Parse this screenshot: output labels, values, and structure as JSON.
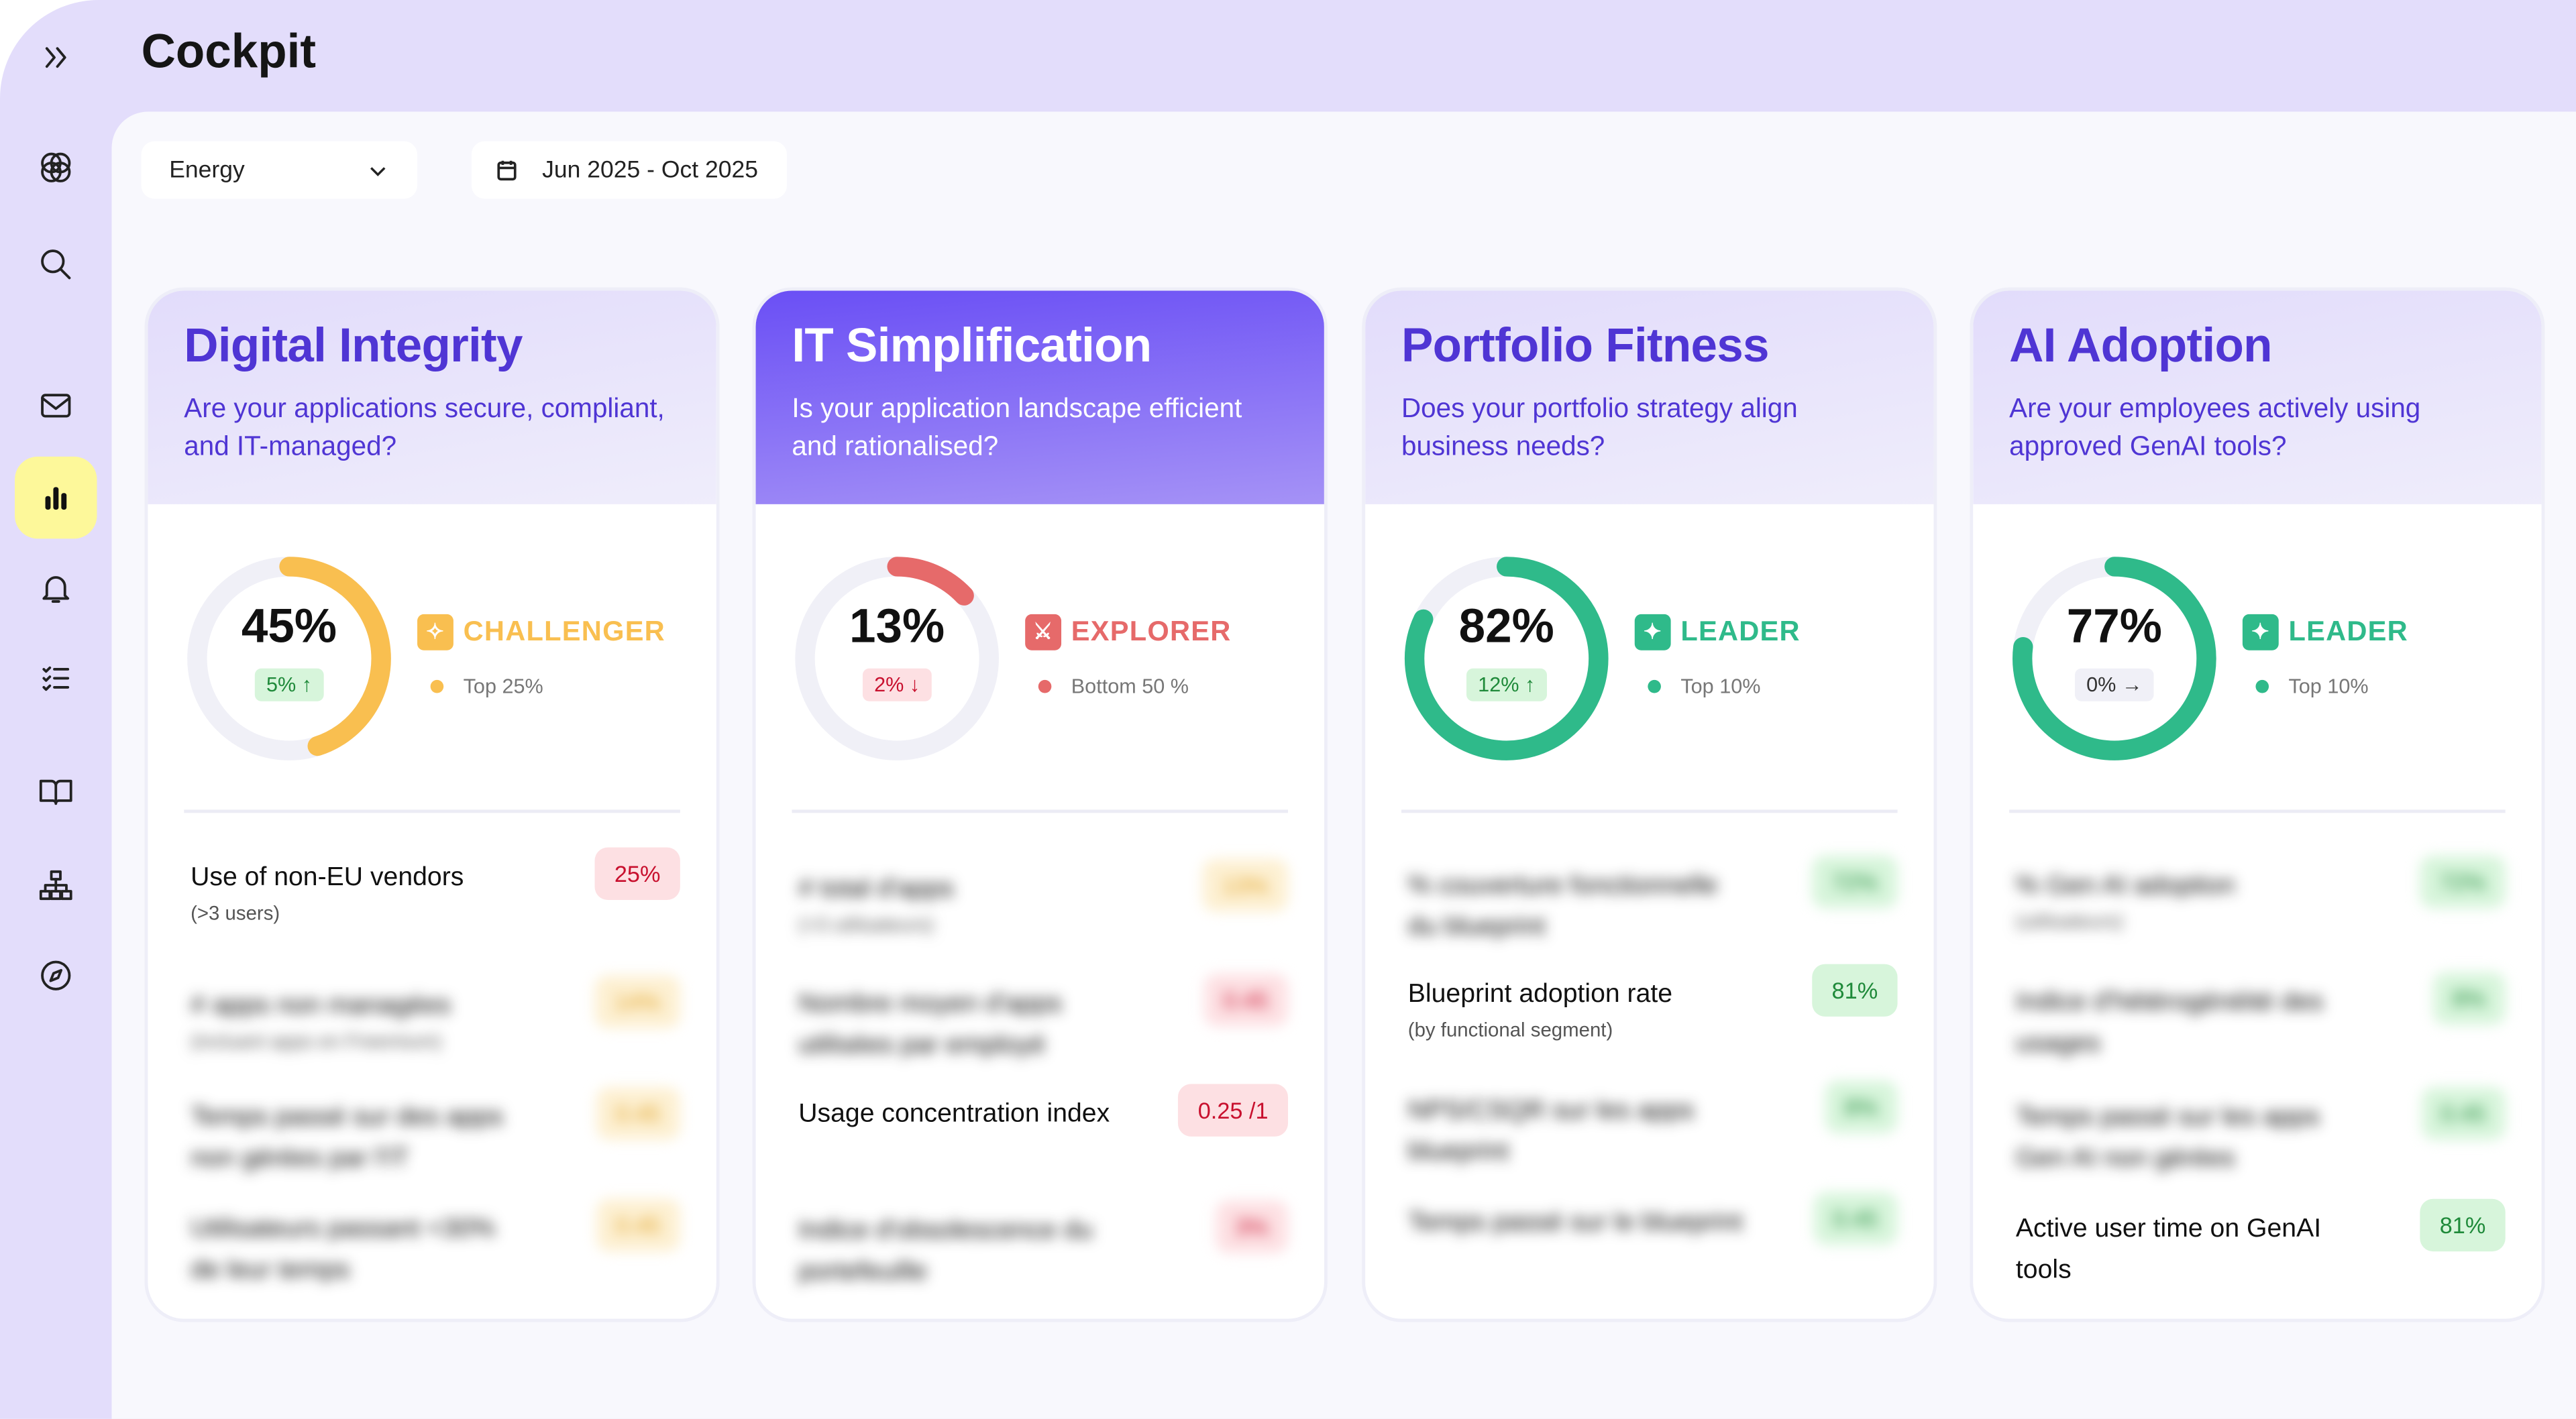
{
  "header": {
    "title": "Cockpit"
  },
  "sidebar": {
    "items": [
      {
        "icon": "chevrons-right-icon"
      },
      {
        "icon": "logo-icon"
      },
      {
        "icon": "search-icon"
      },
      {
        "icon": "mail-icon"
      },
      {
        "icon": "bar-chart-icon",
        "active": true
      },
      {
        "icon": "bell-icon"
      },
      {
        "icon": "checklist-icon"
      },
      {
        "icon": "book-icon"
      },
      {
        "icon": "sitemap-icon"
      },
      {
        "icon": "compass-icon"
      }
    ]
  },
  "filters": {
    "industry": "Energy",
    "date_range": "Jun 2025 - Oct 2025"
  },
  "colors": {
    "accent": "#4f35d4",
    "challenger": "#f9bf50",
    "explorer": "#e66a6a",
    "leader": "#2fba8a",
    "active_nav": "#fdf89a"
  },
  "cards": [
    {
      "title": "Digital Integrity",
      "subtitle": "Are your applications secure, compliant, and IT-managed?",
      "score": "45%",
      "score_value": 45,
      "delta": "5%",
      "delta_dir": "up",
      "tier": "CHALLENGER",
      "rank": "Top 25%",
      "rows": [
        {
          "label": "Use of non-EU vendors",
          "sub": "(>3 users)",
          "value": "25%",
          "tone": "red"
        },
        {
          "label": "# apps non managées",
          "sub": "(incluant apps en Freemium)",
          "value": "14%",
          "tone": "yellow",
          "blurred": true
        },
        {
          "label": "Temps passé sur des apps non gérées par l'IT",
          "value": "0.45",
          "tone": "yellow",
          "blurred": true
        },
        {
          "label": "Utilisateurs passant <30% de leur temps",
          "value": "0.45",
          "tone": "yellow",
          "blurred": true
        }
      ]
    },
    {
      "title": "IT Simplification",
      "subtitle": "Is your application landscape efficient and rationalised?",
      "score": "13%",
      "score_value": 13,
      "delta": "2%",
      "delta_dir": "down",
      "tier": "EXPLORER",
      "rank": "Bottom 50 %",
      "rows": [
        {
          "label": "# total d'apps",
          "sub": "(>3 utilisateurs)",
          "value": "13%",
          "tone": "yellow",
          "blurred": true
        },
        {
          "label": "Nombre moyen d'apps utilisées par employé",
          "value": "0.45",
          "tone": "red",
          "blurred": true
        },
        {
          "label": "Usage concentration index",
          "value": "0.25 /1",
          "tone": "red"
        },
        {
          "label": "Indice d'obsolescence du portefeuille",
          "value": "3%",
          "tone": "red",
          "blurred": true
        }
      ]
    },
    {
      "title": "Portfolio Fitness",
      "subtitle": "Does your portfolio strategy align business needs?",
      "score": "82%",
      "score_value": 82,
      "delta": "12%",
      "delta_dir": "up",
      "tier": "LEADER",
      "rank": "Top 10%",
      "rows": [
        {
          "label": "% couverture fonctionnelle du blueprint",
          "value": "72%",
          "tone": "green",
          "blurred": true
        },
        {
          "label": "Blueprint adoption rate",
          "sub": "(by functional segment)",
          "value": "81%",
          "tone": "green"
        },
        {
          "label": "NPS/CSQR sur les apps blueprint",
          "value": "8%",
          "tone": "green",
          "blurred": true
        },
        {
          "label": "Temps passé sur le blueprint",
          "value": "0.45",
          "tone": "green",
          "blurred": true
        }
      ]
    },
    {
      "title": "AI Adoption",
      "subtitle": "Are your employees actively using approved GenAI tools?",
      "score": "77%",
      "score_value": 77,
      "delta": "0%",
      "delta_dir": "flat",
      "tier": "LEADER",
      "rank": "Top 10%",
      "rows": [
        {
          "label": "% Gen AI adoption",
          "sub": "(utilisateurs)",
          "value": "72%",
          "tone": "green",
          "blurred": true
        },
        {
          "label": "Indice d'hétérogénéité des usages",
          "value": "8%",
          "tone": "green",
          "blurred": true
        },
        {
          "label": "Temps passé sur les apps Gen AI non gérées",
          "value": "0.45",
          "tone": "green",
          "blurred": true
        },
        {
          "label": "Active user time on GenAI tools",
          "value": "81%",
          "tone": "green"
        }
      ]
    }
  ]
}
